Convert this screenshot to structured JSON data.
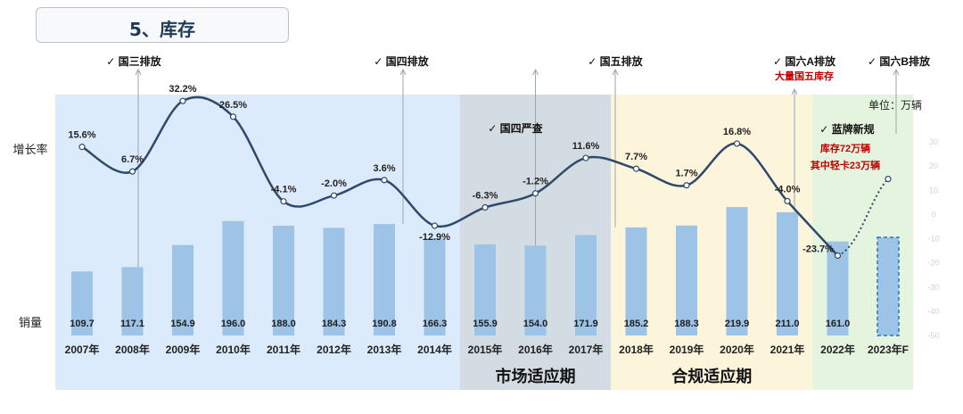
{
  "page_title": "5、库存",
  "chart_data": {
    "type": "bar+line",
    "categories": [
      "2007年",
      "2008年",
      "2009年",
      "2010年",
      "2011年",
      "2012年",
      "2013年",
      "2014年",
      "2015年",
      "2016年",
      "2017年",
      "2018年",
      "2019年",
      "2020年",
      "2021年",
      "2022年",
      "2023年F"
    ],
    "series": [
      {
        "name": "销量",
        "type": "bar",
        "values": [
          109.7,
          117.1,
          154.9,
          196.0,
          188.0,
          184.3,
          190.8,
          166.3,
          155.9,
          154.0,
          171.9,
          185.2,
          188.3,
          219.9,
          211.0,
          161.0,
          168.0
        ]
      },
      {
        "name": "增长率",
        "type": "line",
        "values": [
          15.6,
          6.7,
          32.2,
          26.5,
          -4.1,
          -2.0,
          3.6,
          -12.9,
          -6.3,
          -1.2,
          11.6,
          7.7,
          1.7,
          16.8,
          -4.0,
          -23.7,
          4.0
        ]
      }
    ],
    "bar_labels": [
      "109.7",
      "117.1",
      "154.9",
      "196.0",
      "188.0",
      "184.3",
      "190.8",
      "166.3",
      "155.9",
      "154.0",
      "171.9",
      "185.2",
      "188.3",
      "219.9",
      "211.0",
      "161.0",
      ""
    ],
    "line_labels": [
      "15.6%",
      "6.7%",
      "32.2%",
      "26.5%",
      "-4.1%",
      "-2.0%",
      "3.6%",
      "-12.9%",
      "-6.3%",
      "-1.2%",
      "11.6%",
      "7.7%",
      "1.7%",
      "16.8%",
      "-4.0%",
      "-23.7%",
      ""
    ],
    "forecast_from_index": 16,
    "row_labels": {
      "growth": "增长率",
      "sales": "销量"
    },
    "unit_label": "单位：万辆",
    "right_axis": {
      "ticks": [
        "30",
        "20",
        "10",
        "0",
        "-10",
        "-20",
        "-30",
        "-40",
        "-50"
      ],
      "range": [
        -50,
        30
      ]
    },
    "periods": [
      {
        "label": "",
        "from": 0,
        "to": 8,
        "color": "#dcebfb"
      },
      {
        "label": "市场适应期",
        "from": 8,
        "to": 10,
        "color": "#d3dbe3"
      },
      {
        "label": "合规适应期",
        "from": 11,
        "to": 14,
        "color": "#fdf4dc"
      },
      {
        "label": "",
        "from": 15,
        "to": 16,
        "color": "#e4f4df"
      }
    ],
    "annotations": [
      {
        "label": "国三排放",
        "index": 1,
        "sub": []
      },
      {
        "label": "国四排放",
        "index": 6,
        "sub": []
      },
      {
        "label": "国四严查",
        "index": 9,
        "sub": []
      },
      {
        "label": "国五排放",
        "index": 11,
        "sub": []
      },
      {
        "label": "国六A排放",
        "index": 15,
        "sub": [
          "大量国五库存"
        ]
      },
      {
        "label": "国六B排放",
        "index": 16,
        "sub": []
      },
      {
        "label": "蓝牌新规",
        "index": 15,
        "sub": [
          "库存72万辆",
          "其中轻卡23万辆"
        ]
      }
    ],
    "colors": {
      "bar": "#9dc3e6",
      "line": "#2e4a6b",
      "accent_red": "#c00000"
    }
  }
}
